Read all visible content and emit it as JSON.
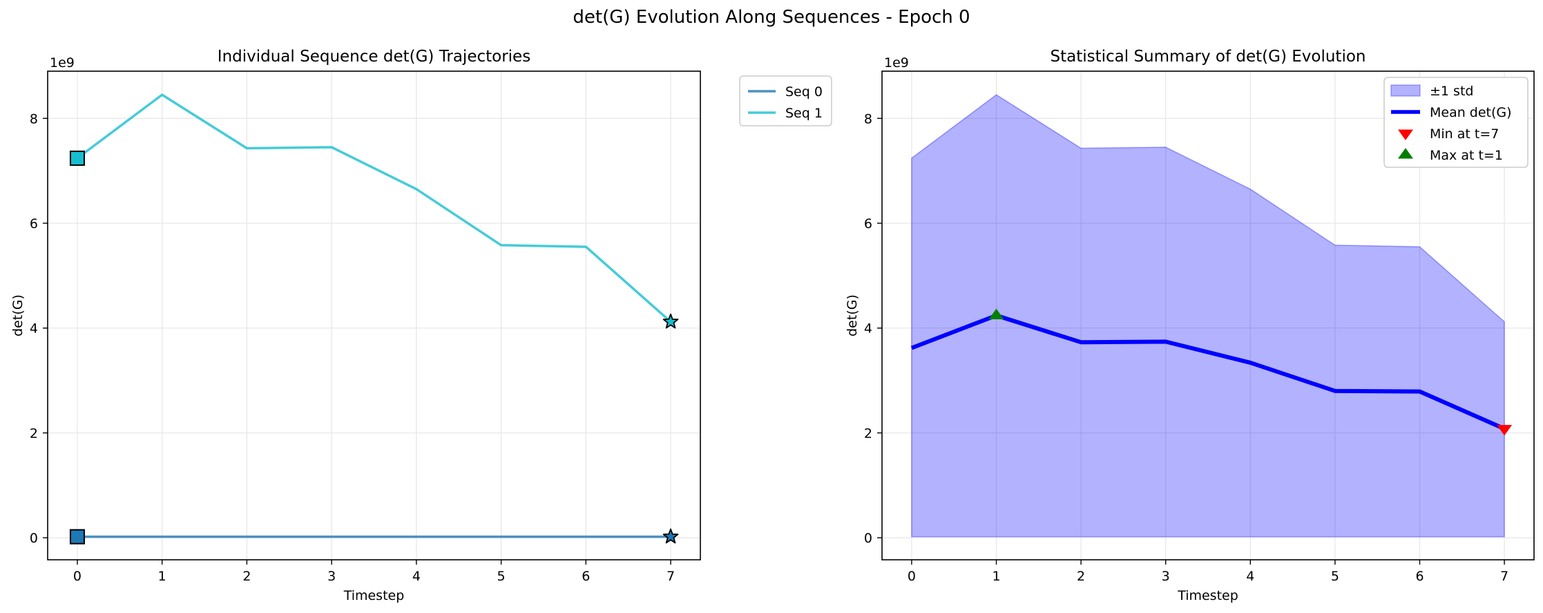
{
  "figure": {
    "suptitle": "det(G) Evolution Along Sequences - Epoch 0"
  },
  "chart_data": [
    {
      "type": "line",
      "title": "Individual Sequence det(G) Trajectories",
      "xlabel": "Timestep",
      "ylabel": "det(G)",
      "offset_label": "1e9",
      "x": [
        0,
        1,
        2,
        3,
        4,
        5,
        6,
        7
      ],
      "xticks": [
        "0",
        "1",
        "2",
        "3",
        "4",
        "5",
        "6",
        "7"
      ],
      "yticks": [
        "0",
        "2",
        "4",
        "6",
        "8"
      ],
      "xlim": [
        -0.35,
        7.35
      ],
      "ylim": [
        -0.42,
        8.9
      ],
      "grid": true,
      "legend_placement": "outside upper-right",
      "series": [
        {
          "name": "Seq 0",
          "color": "#1f77b4",
          "values": [
            0.02,
            0.02,
            0.02,
            0.02,
            0.02,
            0.02,
            0.02,
            0.02
          ],
          "start_marker": "square",
          "end_marker": "star"
        },
        {
          "name": "Seq 1",
          "color": "#17becf",
          "values": [
            7.24,
            8.45,
            7.43,
            7.45,
            6.65,
            5.58,
            5.55,
            4.12
          ],
          "start_marker": "square",
          "end_marker": "star"
        }
      ]
    },
    {
      "type": "area",
      "title": "Statistical Summary of det(G) Evolution",
      "xlabel": "Timestep",
      "ylabel": "det(G)",
      "offset_label": "1e9",
      "x": [
        0,
        1,
        2,
        3,
        4,
        5,
        6,
        7
      ],
      "xticks": [
        "0",
        "1",
        "2",
        "3",
        "4",
        "5",
        "6",
        "7"
      ],
      "yticks": [
        "0",
        "2",
        "4",
        "6",
        "8"
      ],
      "xlim": [
        -0.35,
        7.35
      ],
      "ylim": [
        -0.42,
        8.9
      ],
      "grid": true,
      "legend_placement": "upper-right",
      "band": {
        "name": "±1 std",
        "color": "#0000ff",
        "lower": [
          0.02,
          0.02,
          0.02,
          0.02,
          0.02,
          0.02,
          0.02,
          0.02
        ],
        "upper": [
          7.24,
          8.45,
          7.43,
          7.45,
          6.65,
          5.58,
          5.55,
          4.12
        ]
      },
      "series": [
        {
          "name": "Mean det(G)",
          "color": "#0000ff",
          "values": [
            3.62,
            4.24,
            3.73,
            3.74,
            3.34,
            2.8,
            2.79,
            2.08
          ]
        }
      ],
      "markers": [
        {
          "name": "Min at t=7",
          "x": 7,
          "y": 2.08,
          "color": "#ff0000",
          "shape": "triangle-down"
        },
        {
          "name": "Max at t=1",
          "x": 1,
          "y": 4.24,
          "color": "#008000",
          "shape": "triangle-up"
        }
      ]
    }
  ]
}
